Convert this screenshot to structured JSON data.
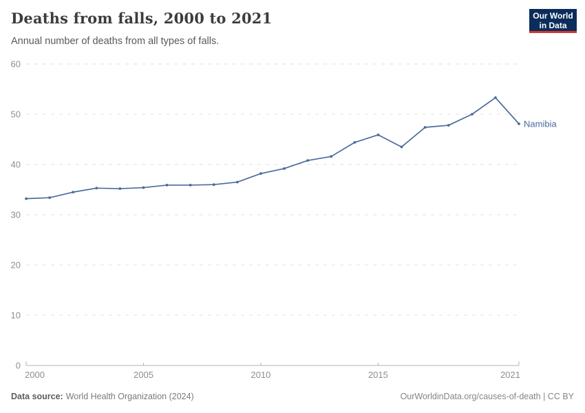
{
  "header": {
    "title": "Deaths from falls, 2000 to 2021",
    "subtitle": "Annual number of deaths from all types of falls.",
    "logo": {
      "line1": "Our World",
      "line2": "in Data",
      "bg_color": "#0b2d5b",
      "accent_color": "#d7342f"
    }
  },
  "chart_data": {
    "type": "line",
    "title": "Deaths from falls, 2000 to 2021",
    "subtitle": "Annual number of deaths from all types of falls.",
    "xlabel": "",
    "ylabel": "",
    "x": [
      2000,
      2001,
      2002,
      2003,
      2004,
      2005,
      2006,
      2007,
      2008,
      2009,
      2010,
      2011,
      2012,
      2013,
      2014,
      2015,
      2016,
      2017,
      2018,
      2019,
      2020,
      2021
    ],
    "series": [
      {
        "name": "Namibia",
        "color": "#4C6A9C",
        "values": [
          33.2,
          33.4,
          34.5,
          35.3,
          35.2,
          35.4,
          35.9,
          35.9,
          36.0,
          36.5,
          38.2,
          39.2,
          40.8,
          41.6,
          44.4,
          45.9,
          43.5,
          47.4,
          47.8,
          50.0,
          53.3,
          48.1
        ]
      }
    ],
    "ylim": [
      0,
      60
    ],
    "yticks": [
      0,
      10,
      20,
      30,
      40,
      50,
      60
    ],
    "xticks": [
      2000,
      2005,
      2010,
      2015,
      2021
    ],
    "grid": "horizontal-dashed",
    "legend_position": "end-of-line-label",
    "end_label": "Namibia",
    "axis_color": "#b3b3b3",
    "grid_color": "#e2e2e2",
    "tick_label_color": "#8e8e8e"
  },
  "footer": {
    "source_label": "Data source:",
    "source_text": "World Health Organization (2024)",
    "credit": "OurWorldinData.org/causes-of-death | CC BY"
  }
}
